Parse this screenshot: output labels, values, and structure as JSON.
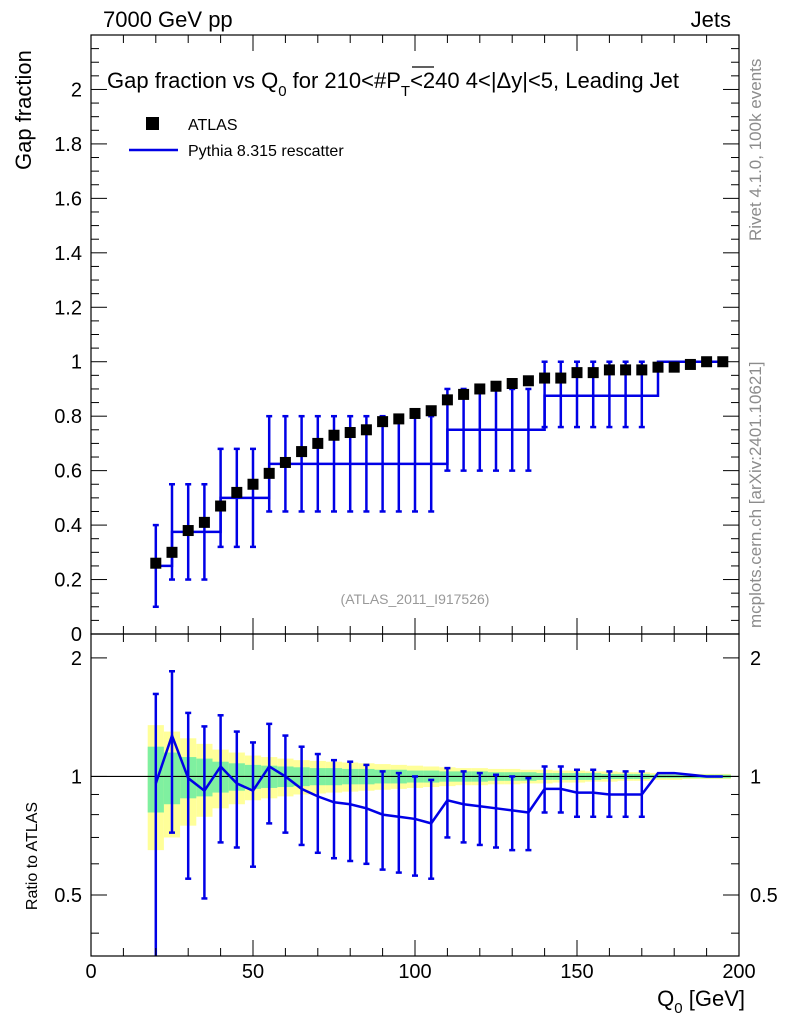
{
  "header": {
    "left_label": "7000 GeV pp",
    "right_label": "Jets"
  },
  "side_labels": {
    "rivet": "Rivet 4.1.0,  100k events",
    "mcplots": "mcplots.cern.ch [arXiv:2401.10621]"
  },
  "analysis_tag": "(ATLAS_2011_I917526)",
  "colors": {
    "data": "#000000",
    "mc": "#0000e6",
    "band_inner": "#7ff0a0",
    "band_outer": "#ffff99"
  },
  "chart_data": [
    {
      "panel": "main",
      "type": "scatter",
      "title": "Gap fraction vs Q0 for 210<#PT<240  4<|Δy|<5, Leading Jet",
      "title_parts": {
        "pre": "Gap fraction vs Q",
        "sub0": "0",
        "mid": " for 210<#",
        "p": "P",
        "subT": "T",
        "post": "<240  4<|Δy|<5, Leading Jet"
      },
      "ylabel": "Gap fraction",
      "xlim": [
        0,
        200
      ],
      "ylim": [
        0,
        2.2
      ],
      "yticks": [
        0,
        0.2,
        0.4,
        0.6,
        0.8,
        1,
        1.2,
        1.4,
        1.6,
        1.8,
        2
      ],
      "ytick_labels": [
        "0",
        "0.2",
        "0.4",
        "0.6",
        "0.8",
        "1",
        "1.2",
        "1.4",
        "1.6",
        "1.8",
        "2"
      ],
      "legend": {
        "position": "top-left",
        "entries": [
          "ATLAS",
          "Pythia 8.315 rescatter"
        ]
      },
      "series": [
        {
          "name": "ATLAS",
          "x": [
            20,
            25,
            30,
            35,
            40,
            45,
            50,
            55,
            60,
            65,
            70,
            75,
            80,
            85,
            90,
            95,
            100,
            105,
            110,
            115,
            120,
            125,
            130,
            135,
            140,
            145,
            150,
            155,
            160,
            165,
            170,
            175,
            180,
            185,
            190,
            195
          ],
          "y": [
            0.26,
            0.3,
            0.38,
            0.41,
            0.47,
            0.52,
            0.55,
            0.59,
            0.63,
            0.67,
            0.7,
            0.73,
            0.74,
            0.75,
            0.78,
            0.79,
            0.81,
            0.82,
            0.86,
            0.88,
            0.9,
            0.91,
            0.92,
            0.93,
            0.94,
            0.94,
            0.96,
            0.96,
            0.97,
            0.97,
            0.97,
            0.98,
            0.98,
            0.99,
            1.0,
            1.0
          ]
        },
        {
          "name": "Pythia 8.315 rescatter",
          "edges": [
            20,
            25,
            35,
            40,
            50,
            55,
            105,
            110,
            135,
            140,
            170,
            175,
            195
          ],
          "values": [
            0.25,
            0.375,
            0.375,
            0.5,
            0.5,
            0.625,
            0.625,
            0.75,
            0.75,
            0.875,
            0.875,
            1.0
          ],
          "errors": [
            {
              "x": 20,
              "lo": 0.1,
              "hi": 0.4
            },
            {
              "x": 25,
              "lo": 0.2,
              "hi": 0.55
            },
            {
              "x": 30,
              "lo": 0.2,
              "hi": 0.55
            },
            {
              "x": 35,
              "lo": 0.2,
              "hi": 0.55
            },
            {
              "x": 40,
              "lo": 0.32,
              "hi": 0.68
            },
            {
              "x": 45,
              "lo": 0.32,
              "hi": 0.68
            },
            {
              "x": 50,
              "lo": 0.32,
              "hi": 0.68
            },
            {
              "x": 55,
              "lo": 0.45,
              "hi": 0.8
            },
            {
              "x": 60,
              "lo": 0.45,
              "hi": 0.8
            },
            {
              "x": 65,
              "lo": 0.45,
              "hi": 0.8
            },
            {
              "x": 70,
              "lo": 0.45,
              "hi": 0.8
            },
            {
              "x": 75,
              "lo": 0.45,
              "hi": 0.8
            },
            {
              "x": 80,
              "lo": 0.45,
              "hi": 0.8
            },
            {
              "x": 85,
              "lo": 0.45,
              "hi": 0.8
            },
            {
              "x": 90,
              "lo": 0.45,
              "hi": 0.8
            },
            {
              "x": 95,
              "lo": 0.45,
              "hi": 0.8
            },
            {
              "x": 100,
              "lo": 0.45,
              "hi": 0.8
            },
            {
              "x": 105,
              "lo": 0.45,
              "hi": 0.8
            },
            {
              "x": 110,
              "lo": 0.6,
              "hi": 0.9
            },
            {
              "x": 115,
              "lo": 0.6,
              "hi": 0.9
            },
            {
              "x": 120,
              "lo": 0.6,
              "hi": 0.9
            },
            {
              "x": 125,
              "lo": 0.6,
              "hi": 0.9
            },
            {
              "x": 130,
              "lo": 0.6,
              "hi": 0.9
            },
            {
              "x": 135,
              "lo": 0.6,
              "hi": 0.9
            },
            {
              "x": 140,
              "lo": 0.76,
              "hi": 1.0
            },
            {
              "x": 145,
              "lo": 0.76,
              "hi": 1.0
            },
            {
              "x": 150,
              "lo": 0.76,
              "hi": 1.0
            },
            {
              "x": 155,
              "lo": 0.76,
              "hi": 1.0
            },
            {
              "x": 160,
              "lo": 0.76,
              "hi": 1.0
            },
            {
              "x": 165,
              "lo": 0.76,
              "hi": 1.0
            },
            {
              "x": 170,
              "lo": 0.76,
              "hi": 1.0
            }
          ]
        }
      ]
    },
    {
      "panel": "ratio",
      "type": "line",
      "ylabel": "Ratio to ATLAS",
      "xlabel": "Q0 [GeV]",
      "xlabel_parts": {
        "pre": "Q",
        "sub": "0",
        "post": " [GeV]"
      },
      "xlim": [
        0,
        200
      ],
      "ylim": [
        0.35,
        2.3
      ],
      "yscale": "log",
      "xticks": [
        0,
        50,
        100,
        150,
        200
      ],
      "xtick_labels": [
        "0",
        "50",
        "100",
        "150",
        "200"
      ],
      "yticks": [
        0.5,
        1,
        2
      ],
      "ytick_labels": [
        "0.5",
        "1",
        "2"
      ],
      "reference_line": 1.0,
      "bands": {
        "x_edges": [
          17.5,
          22.5,
          27.5,
          32.5,
          37.5,
          42.5,
          47.5,
          52.5,
          57.5,
          62.5,
          67.5,
          72.5,
          77.5,
          82.5,
          87.5,
          92.5,
          97.5,
          102.5,
          107.5,
          112.5,
          117.5,
          122.5,
          127.5,
          132.5,
          137.5,
          142.5,
          147.5,
          152.5,
          157.5,
          162.5,
          167.5,
          172.5,
          177.5,
          182.5,
          187.5,
          192.5,
          197.5
        ],
        "inner": [
          0.19,
          0.15,
          0.12,
          0.11,
          0.09,
          0.08,
          0.07,
          0.065,
          0.06,
          0.055,
          0.05,
          0.05,
          0.045,
          0.045,
          0.04,
          0.04,
          0.035,
          0.035,
          0.03,
          0.03,
          0.03,
          0.025,
          0.025,
          0.025,
          0.02,
          0.02,
          0.02,
          0.02,
          0.015,
          0.015,
          0.015,
          0.01,
          0.01,
          0.01,
          0.01,
          0.01
        ],
        "outer": [
          0.35,
          0.3,
          0.25,
          0.21,
          0.17,
          0.15,
          0.13,
          0.12,
          0.11,
          0.1,
          0.095,
          0.09,
          0.085,
          0.08,
          0.075,
          0.07,
          0.065,
          0.06,
          0.055,
          0.05,
          0.05,
          0.045,
          0.045,
          0.04,
          0.04,
          0.035,
          0.035,
          0.03,
          0.03,
          0.025,
          0.025,
          0.02,
          0.02,
          0.015,
          0.015,
          0.015
        ]
      },
      "series": [
        {
          "name": "Pythia 8.315 rescatter / ATLAS",
          "x": [
            20,
            25,
            30,
            35,
            40,
            45,
            50,
            55,
            60,
            65,
            70,
            75,
            80,
            85,
            90,
            95,
            100,
            105,
            110,
            115,
            120,
            125,
            130,
            135,
            140,
            145,
            150,
            155,
            160,
            165,
            170,
            175,
            180,
            185,
            190,
            195
          ],
          "y": [
            0.96,
            1.27,
            0.99,
            0.92,
            1.06,
            0.96,
            0.92,
            1.06,
            1.0,
            0.93,
            0.89,
            0.86,
            0.85,
            0.83,
            0.8,
            0.79,
            0.78,
            0.76,
            0.87,
            0.85,
            0.84,
            0.83,
            0.82,
            0.81,
            0.93,
            0.93,
            0.91,
            0.91,
            0.9,
            0.9,
            0.9,
            1.02,
            1.02,
            1.01,
            1.0,
            1.0
          ],
          "err_lo": [
            0.34,
            0.72,
            0.55,
            0.49,
            0.68,
            0.66,
            0.59,
            0.76,
            0.72,
            0.67,
            0.64,
            0.62,
            0.61,
            0.6,
            0.58,
            0.57,
            0.56,
            0.55,
            0.7,
            0.68,
            0.67,
            0.66,
            0.65,
            0.65,
            0.81,
            0.81,
            0.79,
            0.79,
            0.79,
            0.79,
            0.79,
            null,
            null,
            null,
            null,
            null
          ],
          "err_hi": [
            1.62,
            1.85,
            1.45,
            1.34,
            1.43,
            1.3,
            1.22,
            1.36,
            1.27,
            1.19,
            1.14,
            1.1,
            1.09,
            1.07,
            1.03,
            1.02,
            1.0,
            0.98,
            1.05,
            1.03,
            1.02,
            1.01,
            1.0,
            0.99,
            1.06,
            1.06,
            1.04,
            1.04,
            1.03,
            1.03,
            1.03,
            null,
            null,
            null,
            null,
            null
          ]
        }
      ]
    }
  ]
}
